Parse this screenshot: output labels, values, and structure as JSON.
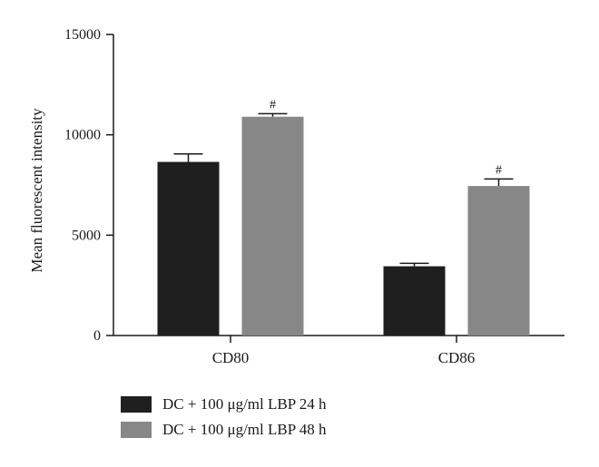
{
  "chart_data": {
    "type": "bar",
    "categories": [
      "CD80",
      "CD86"
    ],
    "series": [
      {
        "name": "DC + 100 μg/ml LBP 24 h",
        "values": [
          8650,
          3450
        ],
        "errors": [
          400,
          150
        ],
        "annotations": [
          "",
          ""
        ],
        "color": "#1f1f1f"
      },
      {
        "name": "DC + 100 μg/ml LBP 48 h",
        "values": [
          10900,
          7450
        ],
        "errors": [
          150,
          350
        ],
        "annotations": [
          "#",
          "#"
        ],
        "color": "#878787"
      }
    ],
    "ylabel": "Mean fluorescent intensity",
    "xlabel": "",
    "ylim": [
      0,
      15000
    ],
    "yticks": [
      "0",
      "5000",
      "10000",
      "15000"
    ],
    "yticks_values": [
      0,
      5000,
      10000,
      15000
    ],
    "grid": false,
    "legend": "bottom-left"
  }
}
